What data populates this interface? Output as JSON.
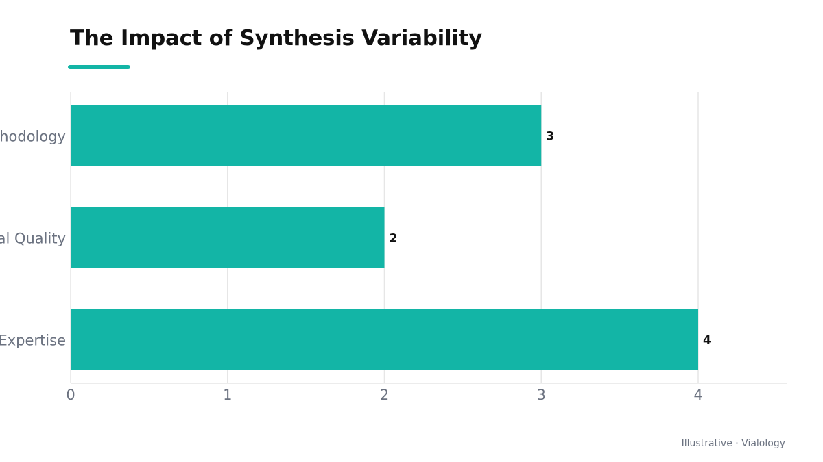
{
  "chart_data": {
    "type": "bar",
    "orientation": "horizontal",
    "title": "The Impact of Synthesis Variability",
    "categories": [
      "Methodology",
      "Material Quality",
      "Expertise"
    ],
    "values": [
      3,
      2,
      4
    ],
    "data_labels": [
      "3",
      "2",
      "4"
    ],
    "xlim": [
      0,
      4.56
    ],
    "x_ticks": [
      0,
      1,
      2,
      3,
      4
    ],
    "x_tick_labels": [
      "0",
      "1",
      "2",
      "3",
      "4"
    ],
    "xlabel": "",
    "ylabel": "",
    "grid": "vertical",
    "legend": "none"
  },
  "footer": {
    "credit": "Illustrative · Vialology"
  },
  "colors": {
    "bar": "#13b5a6",
    "accent": "#13b5a6",
    "grid": "#e6e6e6",
    "axis_text": "#6b7280",
    "value_label": "#111111"
  }
}
